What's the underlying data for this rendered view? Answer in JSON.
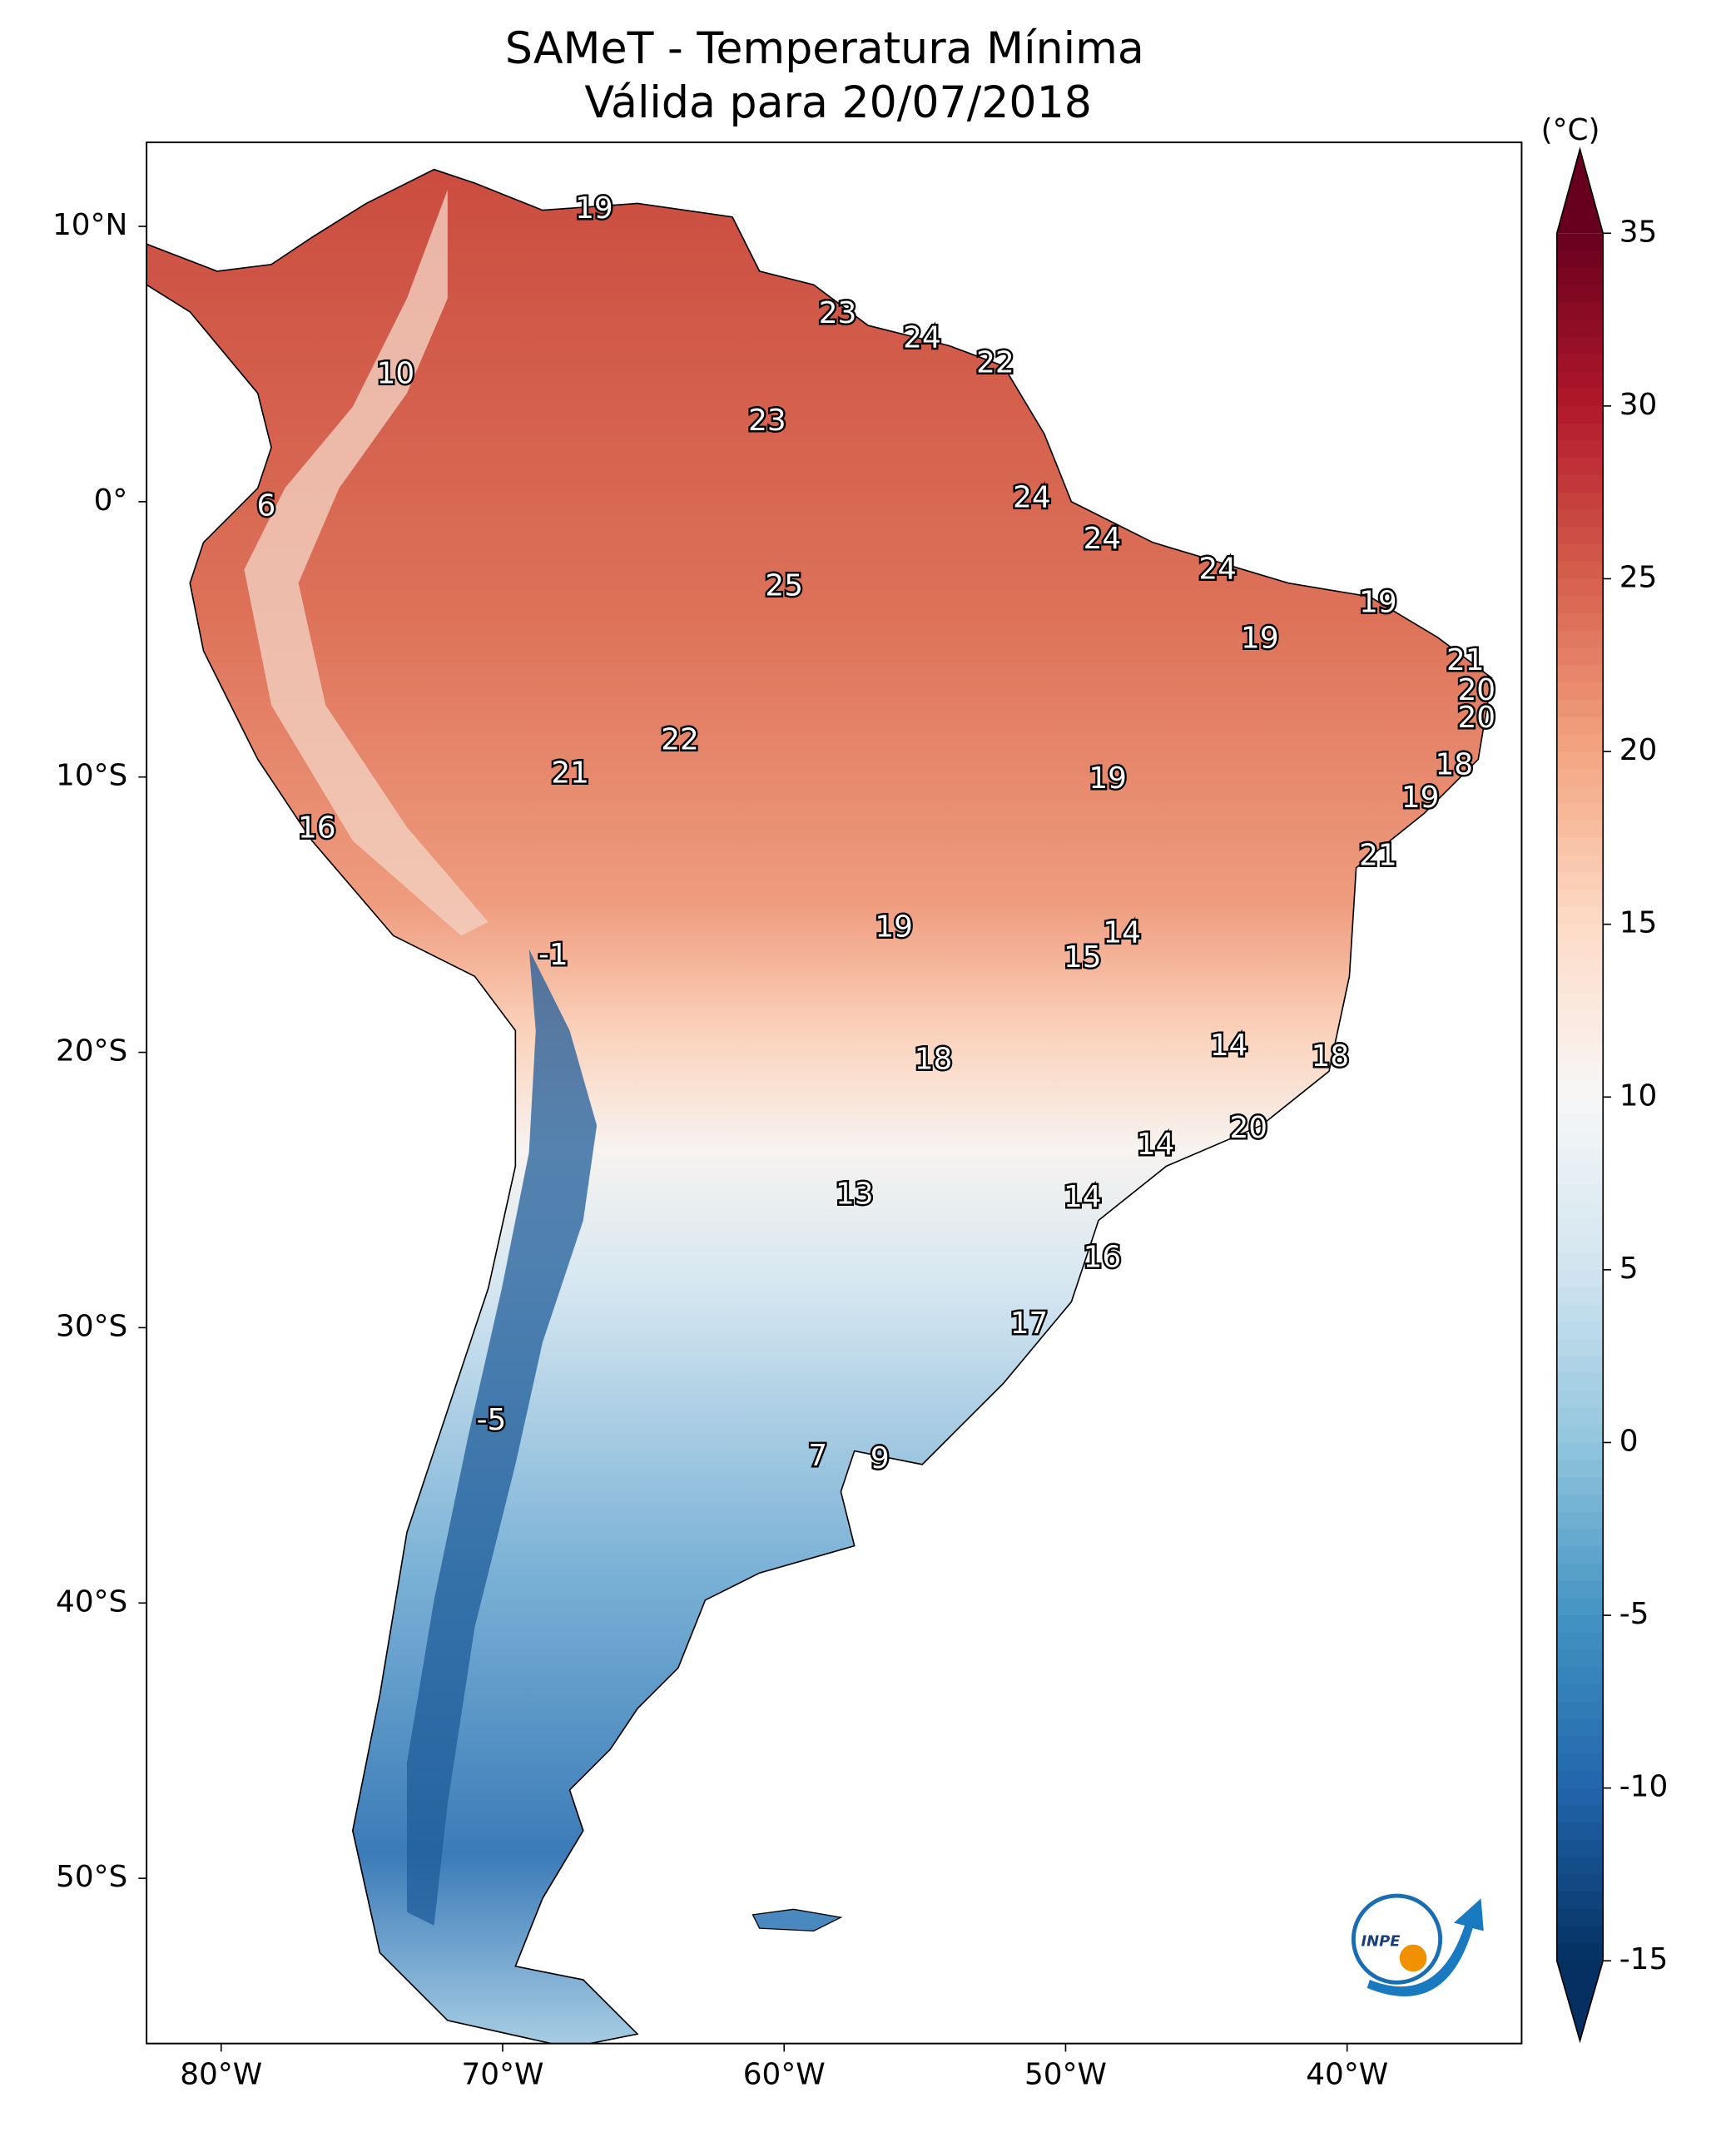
{
  "chart_data": {
    "type": "map",
    "title": "SAMeT - Temperatura Mínima",
    "subtitle": "Válida para 20/07/2018",
    "xlim": [
      -82.65,
      -33.8
    ],
    "ylim": [
      -56.0,
      13.05
    ],
    "xticks": [
      {
        "value": -80,
        "label": "80°W"
      },
      {
        "value": -70,
        "label": "70°W"
      },
      {
        "value": -60,
        "label": "60°W"
      },
      {
        "value": -50,
        "label": "50°W"
      },
      {
        "value": -40,
        "label": "40°W"
      }
    ],
    "yticks": [
      {
        "value": 10,
        "label": "10°N"
      },
      {
        "value": 0,
        "label": "0°"
      },
      {
        "value": -10,
        "label": "10°S"
      },
      {
        "value": -20,
        "label": "20°S"
      },
      {
        "value": -30,
        "label": "30°S"
      },
      {
        "value": -40,
        "label": "40°S"
      },
      {
        "value": -50,
        "label": "50°S"
      }
    ],
    "colormap": "RdBu_r",
    "colorbar": {
      "label": "(°C)",
      "lim": [
        -15,
        35
      ],
      "ticks": [
        -15,
        -10,
        -5,
        0,
        5,
        10,
        15,
        20,
        25,
        30,
        35
      ],
      "extend": "both"
    },
    "labels": [
      {
        "value": 19,
        "lon": -66.75,
        "lat": 10.6
      },
      {
        "value": 23,
        "lon": -58.1,
        "lat": 6.8
      },
      {
        "value": 24,
        "lon": -55.1,
        "lat": 5.9
      },
      {
        "value": 22,
        "lon": -52.5,
        "lat": 5.0
      },
      {
        "value": 10,
        "lon": -73.8,
        "lat": 4.6
      },
      {
        "value": 23,
        "lon": -60.6,
        "lat": 2.9
      },
      {
        "value": 6,
        "lon": -78.4,
        "lat": -0.2
      },
      {
        "value": 24,
        "lon": -51.2,
        "lat": 0.1
      },
      {
        "value": 24,
        "lon": -48.7,
        "lat": -1.4
      },
      {
        "value": 24,
        "lon": -44.6,
        "lat": -2.5
      },
      {
        "value": 25,
        "lon": -60.0,
        "lat": -3.1
      },
      {
        "value": 19,
        "lon": -38.9,
        "lat": -3.7
      },
      {
        "value": 19,
        "lon": -43.1,
        "lat": -5.0
      },
      {
        "value": 21,
        "lon": -35.8,
        "lat": -5.8
      },
      {
        "value": 20,
        "lon": -35.4,
        "lat": -6.9
      },
      {
        "value": 20,
        "lon": -35.4,
        "lat": -7.9
      },
      {
        "value": 22,
        "lon": -63.7,
        "lat": -8.7
      },
      {
        "value": 18,
        "lon": -36.2,
        "lat": -9.6
      },
      {
        "value": 21,
        "lon": -67.6,
        "lat": -9.9
      },
      {
        "value": 19,
        "lon": -48.5,
        "lat": -10.1
      },
      {
        "value": 19,
        "lon": -37.4,
        "lat": -10.8
      },
      {
        "value": 16,
        "lon": -76.6,
        "lat": -11.9
      },
      {
        "value": 21,
        "lon": -38.9,
        "lat": -12.9
      },
      {
        "value": 19,
        "lon": -56.1,
        "lat": -15.5
      },
      {
        "value": 14,
        "lon": -48.0,
        "lat": -15.7
      },
      {
        "value": -1,
        "lon": -68.2,
        "lat": -16.5
      },
      {
        "value": 15,
        "lon": -49.4,
        "lat": -16.6
      },
      {
        "value": 18,
        "lon": -54.7,
        "lat": -20.3
      },
      {
        "value": 14,
        "lon": -44.2,
        "lat": -19.8
      },
      {
        "value": 18,
        "lon": -40.6,
        "lat": -20.2
      },
      {
        "value": 20,
        "lon": -43.5,
        "lat": -22.8
      },
      {
        "value": 14,
        "lon": -46.8,
        "lat": -23.4
      },
      {
        "value": 13,
        "lon": -57.5,
        "lat": -25.2
      },
      {
        "value": 14,
        "lon": -49.4,
        "lat": -25.3
      },
      {
        "value": 16,
        "lon": -48.7,
        "lat": -27.5
      },
      {
        "value": 17,
        "lon": -51.3,
        "lat": -29.9
      },
      {
        "value": -5,
        "lon": -70.4,
        "lat": -33.4
      },
      {
        "value": 7,
        "lon": -58.8,
        "lat": -34.7
      },
      {
        "value": 9,
        "lon": -56.6,
        "lat": -34.8
      }
    ],
    "logo_text": "INPE"
  }
}
